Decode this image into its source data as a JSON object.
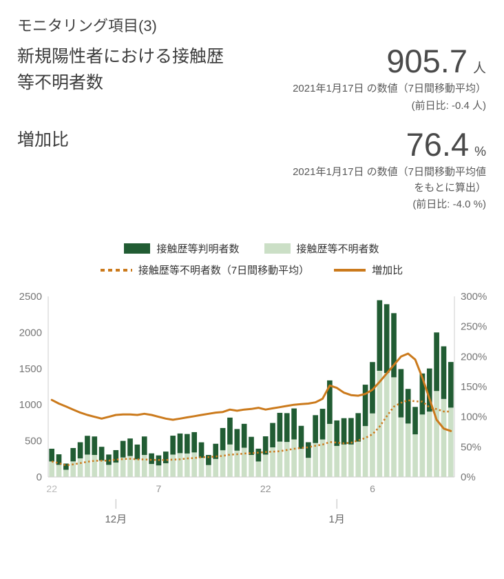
{
  "header": {
    "title": "モニタリング項目(3)",
    "metrics": [
      {
        "label": "新規陽性者における接触歴等不明者数",
        "value": "905.7",
        "unit": "人",
        "note_lines": [
          "2021年1月17日 の数値（7日間移動平均）"
        ],
        "diff": "(前日比: -0.4 人)"
      },
      {
        "label": "増加比",
        "value": "76.4",
        "unit": "%",
        "note_lines": [
          "2021年1月17日 の数値（7日間移動平均値",
          "をもとに算出）"
        ],
        "diff": "(前日比: -4.0 %)"
      }
    ]
  },
  "colors": {
    "bar_known": "#215c33",
    "bar_unknown": "#cbdfc6",
    "line_orange": "#cb7a1c",
    "axis_text": "#757575",
    "axis_line": "#cccccc",
    "x_tick_text": "#8f8f8f",
    "x_tick_muted": "#b9b9b9",
    "month_text": "#666666",
    "month_tick": "#bbbbbb"
  },
  "chart_data": {
    "type": "bar",
    "title": "",
    "xlabel": "",
    "ylabel_left": "",
    "ylabel_right": "",
    "left_axis": {
      "min": 0,
      "max": 2500,
      "ticks": [
        0,
        500,
        1000,
        1500,
        2000,
        2500
      ]
    },
    "right_axis": {
      "min": 0,
      "max": 300,
      "tick_values": [
        0,
        50,
        100,
        150,
        200,
        250,
        300
      ],
      "ticks": [
        "0%",
        "50%",
        "100%",
        "150%",
        "200%",
        "250%",
        "300%"
      ],
      "unit": "%"
    },
    "categories": [
      "11/22",
      "11/23",
      "11/24",
      "11/25",
      "11/26",
      "11/27",
      "11/28",
      "11/29",
      "11/30",
      "12/1",
      "12/2",
      "12/3",
      "12/4",
      "12/5",
      "12/6",
      "12/7",
      "12/8",
      "12/9",
      "12/10",
      "12/11",
      "12/12",
      "12/13",
      "12/14",
      "12/15",
      "12/16",
      "12/17",
      "12/18",
      "12/19",
      "12/20",
      "12/21",
      "12/22",
      "12/23",
      "12/24",
      "12/25",
      "12/26",
      "12/27",
      "12/28",
      "12/29",
      "12/30",
      "12/31",
      "1/1",
      "1/2",
      "1/3",
      "1/4",
      "1/5",
      "1/6",
      "1/7",
      "1/8",
      "1/9",
      "1/10",
      "1/11",
      "1/12",
      "1/13",
      "1/14",
      "1/15",
      "1/16",
      "1/17"
    ],
    "x_ticks": [
      {
        "index": 0,
        "label": "22",
        "muted": true
      },
      {
        "index": 15,
        "label": "7",
        "muted": false
      },
      {
        "index": 30,
        "label": "22",
        "muted": false
      },
      {
        "index": 45,
        "label": "6",
        "muted": false
      }
    ],
    "month_marks": [
      {
        "index": 9,
        "label": "12月"
      },
      {
        "index": 40,
        "label": "1月"
      }
    ],
    "series": [
      {
        "id": "known",
        "name": "接触歴等判明者数",
        "type": "bar",
        "axis": "left",
        "stack": "top",
        "color_key": "bar_known",
        "values": [
          176,
          146,
          86,
          185,
          223,
          260,
          256,
          190,
          143,
          172,
          230,
          243,
          204,
          256,
          147,
          139,
          162,
          262,
          272,
          270,
          281,
          215,
          140,
          210,
          308,
          372,
          299,
          331,
          251,
          177,
          253,
          338,
          398,
          399,
          429,
          318,
          216,
          386,
          424,
          602,
          353,
          364,
          366,
          394,
          573,
          711,
          977,
          952,
          888,
          669,
          479,
          380,
          568,
          597,
          811,
          729,
          632
        ]
      },
      {
        "id": "unknown",
        "name": "接触歴等不明者数",
        "type": "bar",
        "axis": "left",
        "stack": "bottom",
        "color_key": "bar_unknown",
        "values": [
          215,
          168,
          100,
          216,
          258,
          310,
          305,
          228,
          168,
          200,
          270,
          290,
          245,
          305,
          180,
          160,
          190,
          310,
          330,
          325,
          340,
          265,
          165,
          250,
          370,
          450,
          365,
          405,
          305,
          215,
          310,
          410,
          490,
          485,
          520,
          390,
          265,
          470,
          520,
          735,
          430,
          450,
          450,
          490,
          705,
          880,
          1470,
          1440,
          1380,
          825,
          740,
          590,
          865,
          905,
          1190,
          1080,
          960
        ]
      },
      {
        "id": "ma7",
        "name": "接触歴等不明者数（7日間移動平均）",
        "type": "dotted-line",
        "axis": "left",
        "color_key": "line_orange",
        "values": [
          215.0,
          191.5,
          161.0,
          174.8,
          191.4,
          211.2,
          224.6,
          226.4,
          226.4,
          240.7,
          248.4,
          253.0,
          243.7,
          243.7,
          236.9,
          235.7,
          234.3,
          240.0,
          245.7,
          257.1,
          262.1,
          274.3,
          275.0,
          283.6,
          292.1,
          309.3,
          315.0,
          324.3,
          330.0,
          337.1,
          345.7,
          351.4,
          357.1,
          374.3,
          390.7,
          402.9,
          410.0,
          432.9,
          448.6,
          483.6,
          475.7,
          465.7,
          474.3,
          506.4,
          540.0,
          591.4,
          696.4,
          840.7,
          973.6,
          1027.1,
          1062.9,
          1046.4,
          1044.3,
          965.0,
          940.0,
          906.1,
          905.7
        ]
      },
      {
        "id": "ratio",
        "name": "増加比",
        "type": "line",
        "axis": "right",
        "unit": "%",
        "color_key": "line_orange",
        "values": [
          128,
          122,
          117,
          112,
          107,
          103,
          100,
          97,
          100,
          103,
          104,
          104,
          103,
          105,
          103,
          100,
          97,
          95,
          97,
          99,
          101,
          103,
          105,
          107,
          108,
          112,
          110,
          112,
          113,
          115,
          112,
          114,
          116,
          118,
          120,
          121,
          122,
          124,
          130,
          152,
          148,
          140,
          136,
          135,
          138,
          145,
          158,
          172,
          186,
          200,
          205,
          195,
          165,
          130,
          95,
          80.4,
          76.4
        ]
      }
    ]
  }
}
